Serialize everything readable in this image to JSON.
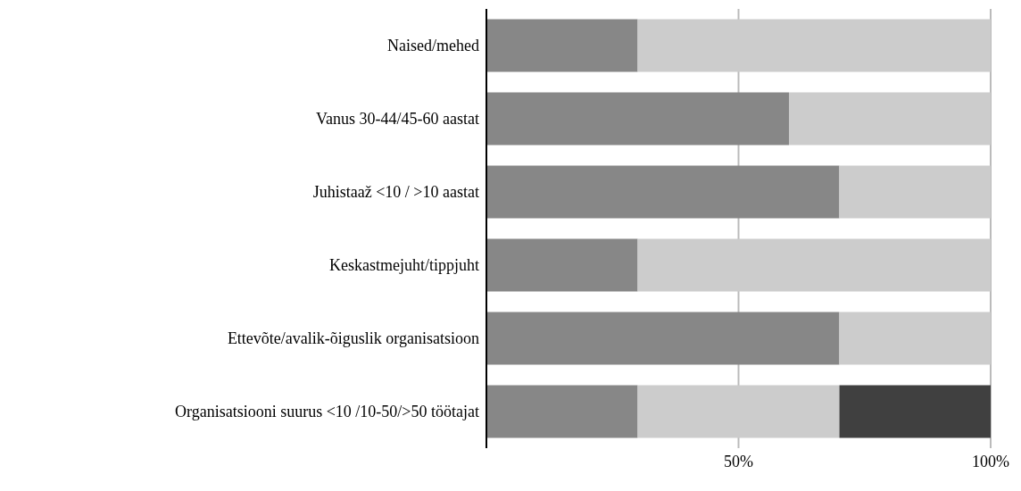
{
  "chart_data": {
    "type": "bar",
    "orientation": "horizontal",
    "stacked": true,
    "categories": [
      "Naised/mehed",
      "Vanus 30-44/45-60 aastat",
      "Juhistaaž <10 / >10 aastat",
      "Keskastmejuht/tippjuht",
      "Ettevõte/avalik-õiguslik organisatsioon",
      "Organisatsiooni suurus <10 /10-50/>50 töötajat"
    ],
    "series": [
      {
        "color": "#878787",
        "values": [
          30,
          60,
          70,
          30,
          70,
          30
        ]
      },
      {
        "color": "#cccccc",
        "values": [
          70,
          40,
          30,
          70,
          30,
          40
        ]
      },
      {
        "color": "#404040",
        "values": [
          null,
          null,
          null,
          null,
          null,
          30
        ]
      }
    ],
    "xlim": [
      0,
      100
    ],
    "xticks": [
      {
        "value": 50,
        "label": "50%"
      },
      {
        "value": 100,
        "label": "100%"
      }
    ],
    "grid": "x",
    "legend": false
  }
}
